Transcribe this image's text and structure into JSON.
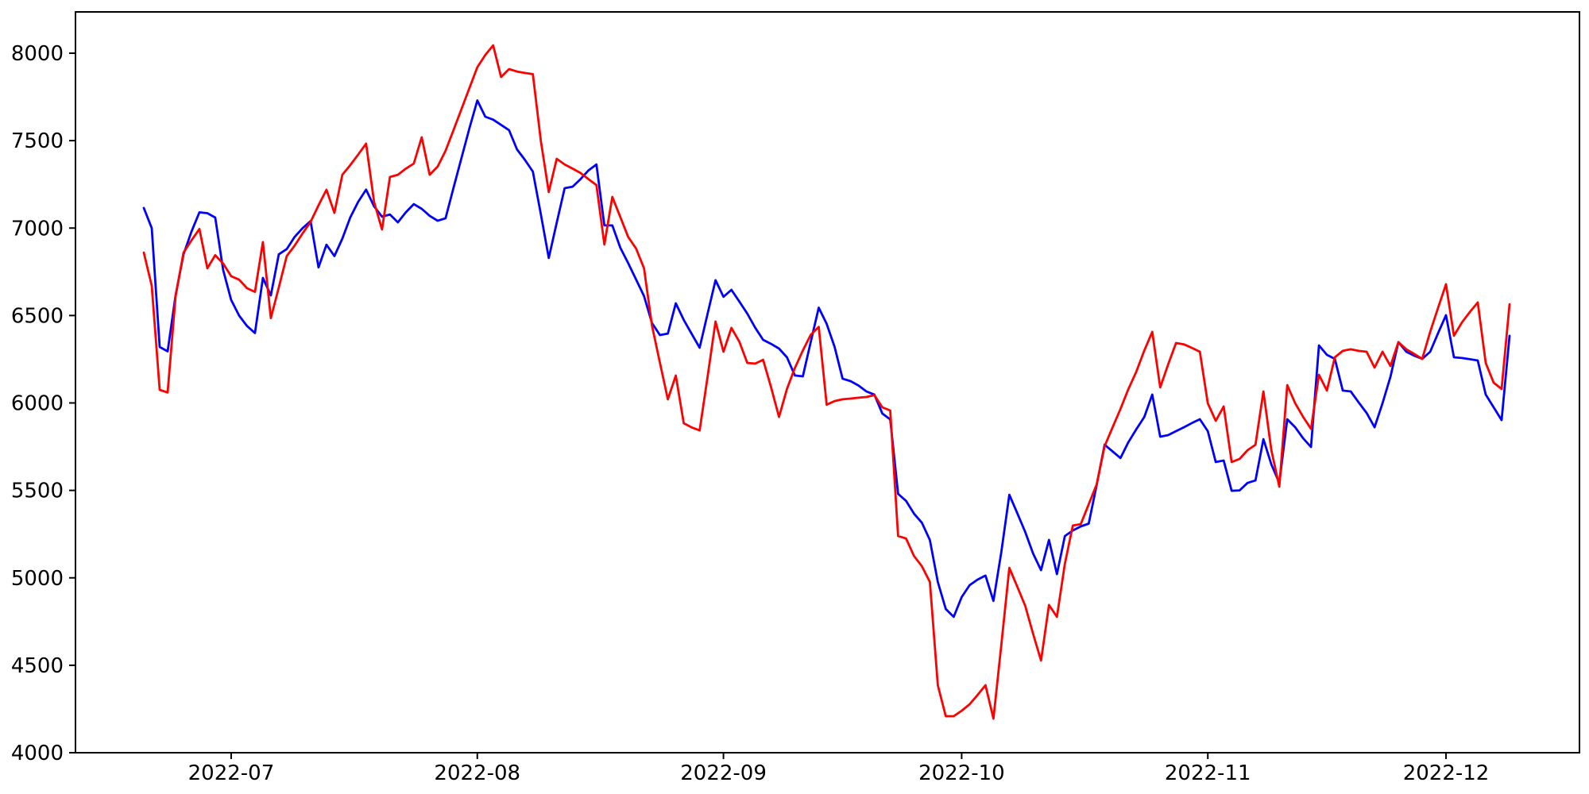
{
  "figure": {
    "background": "#ffffff",
    "axes_border_color": "#000000",
    "tick_color": "#000000",
    "tick_label_color": "#000000"
  },
  "chart_data": {
    "type": "line",
    "title": "",
    "xlabel": "",
    "ylabel": "",
    "grid": false,
    "legend": "none",
    "x_start_date": "2022-06-20",
    "x_end_date": "2022-12-09",
    "x_frequency": "daily",
    "n_points": 173,
    "ylim": [
      4000,
      8240
    ],
    "y_ticks": [
      4000,
      4500,
      5000,
      5500,
      6000,
      6500,
      7000,
      7500,
      8000
    ],
    "y_tick_labels": [
      "4000",
      "4500",
      "5000",
      "5500",
      "6000",
      "6500",
      "7000",
      "7500",
      "8000"
    ],
    "x_ticks": [
      {
        "label": "2022-07",
        "day_index": 11
      },
      {
        "label": "2022-08",
        "day_index": 42
      },
      {
        "label": "2022-09",
        "day_index": 73
      },
      {
        "label": "2022-10",
        "day_index": 103
      },
      {
        "label": "2022-11",
        "day_index": 134
      },
      {
        "label": "2022-12",
        "day_index": 164
      }
    ],
    "series": [
      {
        "name": "blue",
        "color": "#0000ff",
        "values": [
          7115,
          7000,
          6320,
          6295,
          6615,
          6850,
          6980,
          7090,
          7085,
          7060,
          6760,
          6590,
          6500,
          6440,
          6400,
          6715,
          6615,
          6850,
          6880,
          6950,
          7000,
          7040,
          6775,
          6905,
          6840,
          6940,
          7060,
          7150,
          7220,
          7124,
          7065,
          7078,
          7033,
          7090,
          7137,
          7110,
          7070,
          7042,
          7056,
          7230,
          7400,
          7570,
          7730,
          7637,
          7620,
          7590,
          7560,
          7450,
          7390,
          7323,
          7080,
          6829,
          7030,
          7228,
          7237,
          7280,
          7330,
          7364,
          7015,
          7015,
          6888,
          6800,
          6706,
          6611,
          6457,
          6388,
          6397,
          6570,
          6475,
          6395,
          6316,
          6510,
          6702,
          6607,
          6647,
          6580,
          6511,
          6430,
          6361,
          6338,
          6311,
          6261,
          6157,
          6152,
          6350,
          6545,
          6452,
          6320,
          6139,
          6125,
          6100,
          6066,
          6048,
          5940,
          5906,
          5480,
          5440,
          5367,
          5315,
          5216,
          4976,
          4822,
          4777,
          4890,
          4958,
          4990,
          5013,
          4868,
          5150,
          5475,
          5370,
          5262,
          5139,
          5044,
          5217,
          5021,
          5239,
          5271,
          5294,
          5310,
          5530,
          5761,
          5723,
          5685,
          5776,
          5850,
          5920,
          6048,
          5807,
          5816,
          5839,
          5861,
          5885,
          5907,
          5839,
          5662,
          5671,
          5498,
          5500,
          5543,
          5557,
          5793,
          5648,
          5543,
          5907,
          5861,
          5798,
          5748,
          6329,
          6275,
          6252,
          6071,
          6066,
          6003,
          5943,
          5861,
          5998,
          6150,
          6348,
          6293,
          6270,
          6252,
          6293,
          6400,
          6502,
          6261,
          6257,
          6250,
          6243,
          6048,
          5975,
          5902,
          6384
        ]
      },
      {
        "name": "red",
        "color": "#ff0000",
        "values": [
          6860,
          6670,
          6075,
          6060,
          6610,
          6860,
          6930,
          6995,
          6770,
          6845,
          6797,
          6725,
          6705,
          6656,
          6635,
          6920,
          6485,
          6660,
          6840,
          6900,
          6970,
          7035,
          7130,
          7219,
          7087,
          7305,
          7360,
          7420,
          7483,
          7150,
          6992,
          7292,
          7305,
          7340,
          7369,
          7519,
          7305,
          7351,
          7442,
          7560,
          7680,
          7800,
          7920,
          7990,
          8045,
          7864,
          7909,
          7895,
          7887,
          7880,
          7500,
          7206,
          7396,
          7364,
          7340,
          7315,
          7280,
          7246,
          6906,
          7178,
          7064,
          6950,
          6883,
          6770,
          6443,
          6230,
          6021,
          6157,
          5884,
          5860,
          5843,
          6150,
          6466,
          6293,
          6429,
          6350,
          6229,
          6225,
          6247,
          6090,
          5920,
          6080,
          6200,
          6300,
          6390,
          6435,
          5990,
          6011,
          6021,
          6025,
          6030,
          6034,
          6045,
          5975,
          5957,
          5239,
          5225,
          5125,
          5066,
          4976,
          4386,
          4209,
          4209,
          4240,
          4277,
          4330,
          4386,
          4195,
          4620,
          5057,
          4950,
          4840,
          4680,
          4527,
          4845,
          4777,
          5080,
          5299,
          5307,
          5420,
          5534,
          5752,
          5860,
          5966,
          6080,
          6180,
          6300,
          6407,
          6089,
          6220,
          6343,
          6335,
          6315,
          6293,
          5998,
          5898,
          5980,
          5662,
          5680,
          5730,
          5761,
          6066,
          5730,
          5521,
          6102,
          5998,
          5920,
          5852,
          6161,
          6071,
          6261,
          6298,
          6307,
          6298,
          6293,
          6202,
          6293,
          6211,
          6348,
          6307,
          6280,
          6252,
          6407,
          6545,
          6679,
          6384,
          6460,
          6520,
          6575,
          6229,
          6116,
          6080,
          6565
        ]
      }
    ]
  }
}
